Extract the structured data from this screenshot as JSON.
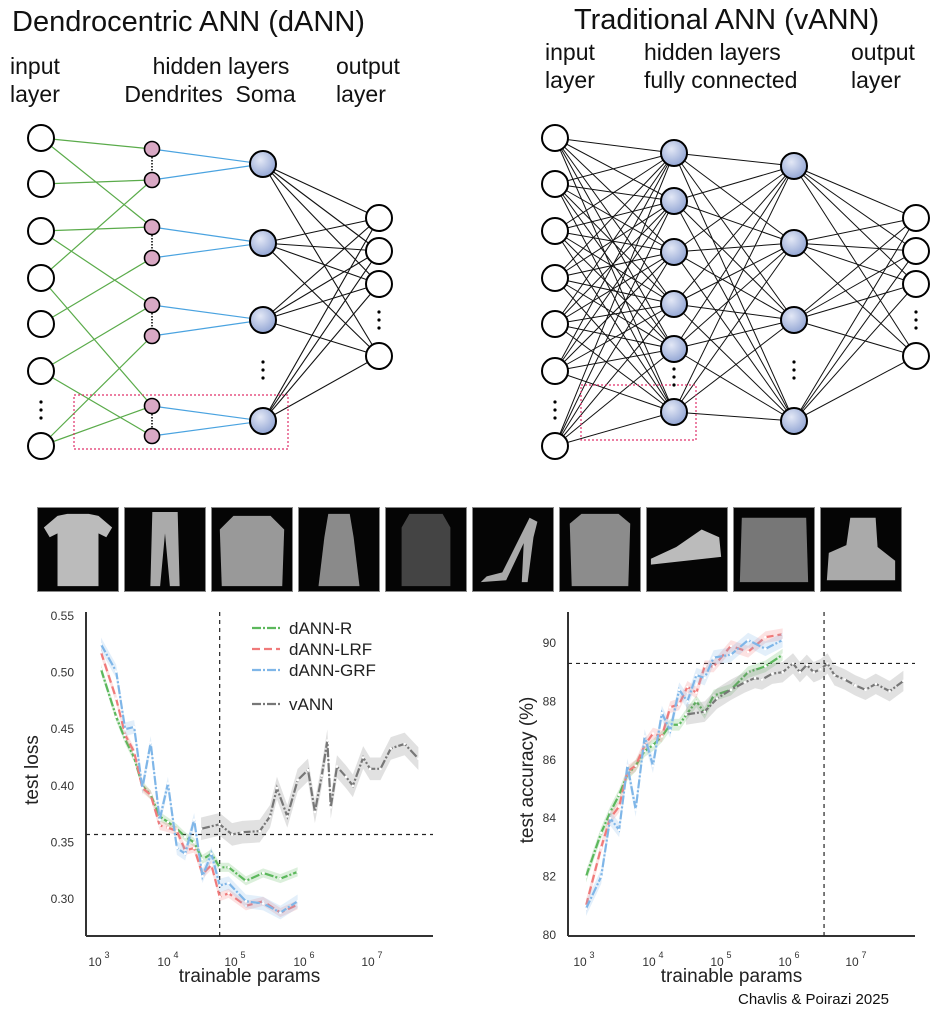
{
  "dann": {
    "title": "Dendrocentric ANN (dANN)",
    "labels": {
      "input": [
        "input",
        "layer"
      ],
      "hidden": [
        "hidden layers",
        "Dendrites  Soma"
      ],
      "output": [
        "output",
        "layer"
      ]
    },
    "ellipsis": "⋮"
  },
  "vann": {
    "title": "Traditional ANN (vANN)",
    "labels": {
      "input": [
        "input",
        "layer"
      ],
      "hidden": [
        "hidden layers",
        "fully connected"
      ],
      "output": [
        "output",
        "layer"
      ]
    },
    "ellipsis": "⋮"
  },
  "colors": {
    "input_node": "#ffffff",
    "dendrite_node": "#d9a8c4",
    "soma_node": "#aab8dc",
    "dendrite_edge": "#5aab4a",
    "soma_edge": "#4aa3e0",
    "dense_edge": "#111111",
    "highlight_box": "#e0306a",
    "dANN-R": "#5cb85c",
    "dANN-LRF": "#f07a7a",
    "dANN-GRF": "#7fb6e8",
    "vANN": "#777777"
  },
  "fashion_samples": [
    "T-shirt/top",
    "Trouser",
    "Pullover",
    "Dress",
    "Coat",
    "Sandal",
    "Shirt",
    "Sneaker",
    "Bag",
    "Ankle boot"
  ],
  "credit": "Chavlis & Poirazi 2025",
  "chart_data": [
    {
      "type": "line",
      "title": "",
      "xlabel": "trainable params",
      "ylabel": "test loss",
      "xscale": "log",
      "xlim_log10": [
        2.75,
        7.85
      ],
      "ylim": [
        0.275,
        0.555
      ],
      "xticks": [
        "10^3",
        "10^4",
        "10^5",
        "10^6",
        "10^7"
      ],
      "xtick_values_log10": [
        3,
        4,
        5,
        6,
        7
      ],
      "yticks": [
        "0.30",
        "0.35",
        "0.40",
        "0.45",
        "0.50",
        "0.55"
      ],
      "ytick_values": [
        0.3,
        0.35,
        0.4,
        0.45,
        0.5,
        0.55
      ],
      "grid": false,
      "legend": {
        "placement": "top-right",
        "entries": [
          "dANN-R",
          "dANN-LRF",
          "dANN-GRF",
          "vANN"
        ]
      },
      "reference_lines": {
        "vertical_log10": 4.72,
        "horizontal": 0.357
      },
      "series": [
        {
          "name": "dANN-R",
          "style": "dashdot",
          "x_log10": [
            3.0,
            3.22,
            3.35,
            3.48,
            3.6,
            3.72,
            3.85,
            3.97,
            4.1,
            4.22,
            4.35,
            4.47,
            4.6,
            4.72,
            4.85,
            5.1,
            5.35,
            5.6,
            5.85
          ],
          "y": [
            0.503,
            0.461,
            0.441,
            0.425,
            0.4,
            0.392,
            0.373,
            0.368,
            0.362,
            0.355,
            0.35,
            0.335,
            0.34,
            0.328,
            0.328,
            0.316,
            0.323,
            0.318,
            0.324
          ],
          "band": 0.004
        },
        {
          "name": "dANN-LRF",
          "style": "dashed",
          "x_log10": [
            3.0,
            3.22,
            3.35,
            3.48,
            3.6,
            3.72,
            3.85,
            3.97,
            4.1,
            4.22,
            4.35,
            4.47,
            4.6,
            4.72,
            4.85,
            5.1,
            5.35,
            5.6,
            5.85
          ],
          "y": [
            0.518,
            0.477,
            0.445,
            0.43,
            0.398,
            0.392,
            0.365,
            0.363,
            0.36,
            0.343,
            0.345,
            0.322,
            0.33,
            0.302,
            0.305,
            0.294,
            0.298,
            0.288,
            0.295
          ],
          "band": 0.004
        },
        {
          "name": "dANN-GRF",
          "style": "dashdot",
          "x_log10": [
            3.0,
            3.22,
            3.35,
            3.48,
            3.6,
            3.72,
            3.85,
            3.97,
            4.1,
            4.22,
            4.35,
            4.47,
            4.6,
            4.72,
            4.85,
            5.1,
            5.35,
            5.6,
            5.85
          ],
          "y": [
            0.525,
            0.501,
            0.45,
            0.452,
            0.398,
            0.438,
            0.37,
            0.402,
            0.345,
            0.34,
            0.37,
            0.32,
            0.34,
            0.312,
            0.314,
            0.298,
            0.296,
            0.288,
            0.298
          ],
          "band": 0.006
        },
        {
          "name": "vANN",
          "style": "dashdot",
          "x_log10": [
            4.45,
            4.72,
            4.9,
            5.05,
            5.3,
            5.45,
            5.55,
            5.7,
            5.85,
            6.0,
            6.1,
            6.2,
            6.28,
            6.33,
            6.42,
            6.55,
            6.65,
            6.8,
            6.9,
            7.05,
            7.2,
            7.4,
            7.6
          ],
          "y": [
            0.362,
            0.366,
            0.357,
            0.359,
            0.36,
            0.373,
            0.398,
            0.373,
            0.405,
            0.414,
            0.377,
            0.409,
            0.44,
            0.381,
            0.417,
            0.408,
            0.4,
            0.425,
            0.415,
            0.415,
            0.433,
            0.437,
            0.424
          ],
          "band": 0.01
        }
      ]
    },
    {
      "type": "line",
      "title": "",
      "xlabel": "trainable params",
      "ylabel": "test accuracy (%)",
      "xscale": "log",
      "xlim_log10": [
        2.75,
        7.85
      ],
      "ylim": [
        80,
        91
      ],
      "xticks": [
        "10^3",
        "10^4",
        "10^5",
        "10^6",
        "10^7"
      ],
      "xtick_values_log10": [
        3,
        4,
        5,
        6,
        7
      ],
      "yticks": [
        "80",
        "82",
        "84",
        "86",
        "88",
        "90"
      ],
      "ytick_values": [
        80,
        82,
        84,
        86,
        88,
        90
      ],
      "grid": false,
      "legend": null,
      "reference_lines": {
        "vertical_log10": 6.45,
        "horizontal": 89.3
      },
      "series": [
        {
          "name": "dANN-R",
          "style": "dashdot",
          "x_log10": [
            3.0,
            3.22,
            3.35,
            3.48,
            3.6,
            3.72,
            3.85,
            3.97,
            4.1,
            4.22,
            4.35,
            4.47,
            4.6,
            4.72,
            4.85,
            5.1,
            5.35,
            5.6,
            5.85
          ],
          "y": [
            82.0,
            83.5,
            84.2,
            84.8,
            85.5,
            85.8,
            86.3,
            86.5,
            86.8,
            87.2,
            87.2,
            87.6,
            88.0,
            87.6,
            88.2,
            88.4,
            89.0,
            89.2,
            89.6
          ],
          "band": 0.2
        },
        {
          "name": "dANN-LRF",
          "style": "dashed",
          "x_log10": [
            3.0,
            3.22,
            3.35,
            3.48,
            3.6,
            3.72,
            3.85,
            3.97,
            4.1,
            4.22,
            4.35,
            4.47,
            4.6,
            4.72,
            4.85,
            5.1,
            5.35,
            5.6,
            5.85
          ],
          "y": [
            81.0,
            83.0,
            84.0,
            84.4,
            85.6,
            85.8,
            86.5,
            86.9,
            86.8,
            87.8,
            87.9,
            88.5,
            88.3,
            89.2,
            89.2,
            89.9,
            89.7,
            90.2,
            90.3
          ],
          "band": 0.2
        },
        {
          "name": "dANN-GRF",
          "style": "dashdot",
          "x_log10": [
            3.0,
            3.22,
            3.35,
            3.48,
            3.6,
            3.72,
            3.85,
            3.97,
            4.1,
            4.22,
            4.35,
            4.47,
            4.6,
            4.72,
            4.85,
            5.1,
            5.35,
            5.6,
            5.85
          ],
          "y": [
            80.9,
            82.0,
            84.0,
            83.6,
            85.8,
            84.3,
            86.8,
            85.8,
            87.6,
            87.0,
            88.4,
            88.0,
            88.9,
            88.8,
            89.5,
            89.6,
            90.1,
            89.8,
            90.1
          ],
          "band": 0.25
        },
        {
          "name": "vANN",
          "style": "dashdot",
          "x_log10": [
            4.45,
            4.72,
            4.9,
            5.1,
            5.3,
            5.45,
            5.55,
            5.7,
            5.85,
            6.0,
            6.1,
            6.2,
            6.3,
            6.4,
            6.5,
            6.6,
            6.75,
            6.9,
            7.05,
            7.2,
            7.4,
            7.6
          ],
          "y": [
            87.55,
            87.65,
            88.1,
            88.4,
            88.65,
            88.8,
            88.75,
            88.95,
            89.0,
            89.3,
            89.0,
            89.25,
            89.0,
            89.1,
            89.3,
            88.9,
            88.75,
            88.55,
            88.4,
            88.6,
            88.35,
            88.7
          ],
          "band": 0.35
        }
      ]
    }
  ]
}
